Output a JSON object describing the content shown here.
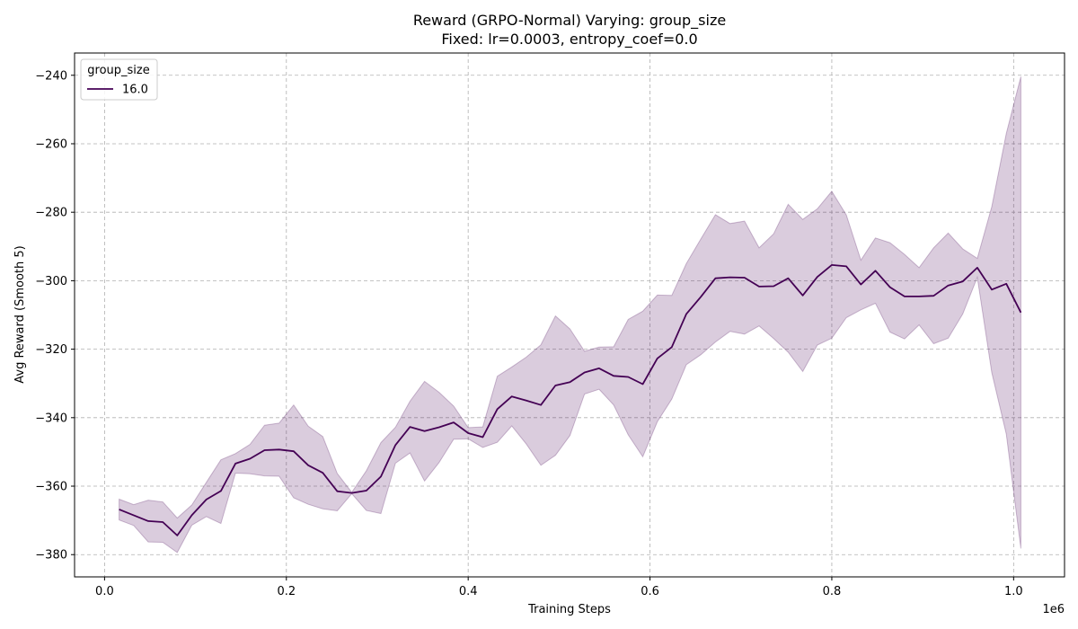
{
  "chart_data": {
    "type": "line",
    "title_line1": "Reward (GRPO-Normal) Varying: group_size",
    "title_line2": "Fixed: lr=0.0003, entropy_coef=0.0",
    "xlabel": "Training Steps",
    "ylabel": "Avg Reward (Smooth 5)",
    "x_multiplier_label": "1e6",
    "xlim": [
      -0.033,
      1.056
    ],
    "ylim": [
      -386.5,
      -233.5
    ],
    "x_ticks": [
      0.0,
      0.2,
      0.4,
      0.6,
      0.8,
      1.0
    ],
    "x_tick_labels": [
      "0.0",
      "0.2",
      "0.4",
      "0.6",
      "0.8",
      "1.0"
    ],
    "y_ticks": [
      -380,
      -360,
      -340,
      -320,
      -300,
      -280,
      -260,
      -240
    ],
    "y_tick_labels": [
      "−380",
      "−360",
      "−340",
      "−320",
      "−300",
      "−280",
      "−260",
      "−240"
    ],
    "grid": true,
    "legend": {
      "title": "group_size",
      "placement": "top-left"
    },
    "series": [
      {
        "name": "16.0",
        "color": "#440154",
        "band_color": "#440154",
        "x": [
          0.016,
          0.032,
          0.048,
          0.064,
          0.08,
          0.096,
          0.112,
          0.128,
          0.144,
          0.16,
          0.176,
          0.192,
          0.208,
          0.224,
          0.24,
          0.256,
          0.272,
          0.288,
          0.304,
          0.32,
          0.336,
          0.352,
          0.368,
          0.384,
          0.4,
          0.416,
          0.432,
          0.448,
          0.464,
          0.48,
          0.496,
          0.512,
          0.528,
          0.544,
          0.56,
          0.576,
          0.592,
          0.608,
          0.624,
          0.64,
          0.656,
          0.672,
          0.688,
          0.704,
          0.72,
          0.736,
          0.752,
          0.768,
          0.784,
          0.8,
          0.816,
          0.832,
          0.848,
          0.864,
          0.88,
          0.896,
          0.912,
          0.928,
          0.944,
          0.96,
          0.976,
          0.992,
          1.008
        ],
        "y": [
          -366.8,
          -368.5,
          -370.2,
          -370.5,
          -374.4,
          -368.5,
          -363.9,
          -361.4,
          -353.4,
          -352.0,
          -349.5,
          -349.3,
          -349.8,
          -353.9,
          -356.1,
          -361.5,
          -362.0,
          -361.3,
          -357.2,
          -348.0,
          -342.7,
          -343.9,
          -342.8,
          -341.4,
          -344.5,
          -345.7,
          -337.5,
          -333.8,
          -335.0,
          -336.3,
          -330.6,
          -329.6,
          -326.8,
          -325.6,
          -327.8,
          -328.1,
          -330.2,
          -322.7,
          -319.4,
          -309.7,
          -304.7,
          -299.3,
          -299.0,
          -299.1,
          -301.7,
          -301.6,
          -299.3,
          -304.3,
          -298.9,
          -295.4,
          -295.8,
          -301.1,
          -297.1,
          -301.9,
          -304.6,
          -304.6,
          -304.4,
          -301.4,
          -300.2,
          -296.2,
          -302.6,
          -300.9,
          -309.3
        ],
        "y_upper": [
          -363.8,
          -365.4,
          -364.1,
          -364.6,
          -369.3,
          -365.5,
          -358.9,
          -352.3,
          -350.5,
          -347.8,
          -342.2,
          -341.6,
          -336.3,
          -342.5,
          -345.5,
          -356.3,
          -361.8,
          -355.5,
          -347.3,
          -342.8,
          -335.2,
          -329.4,
          -332.6,
          -336.6,
          -342.9,
          -342.7,
          -327.9,
          -325.2,
          -322.3,
          -318.7,
          -310.3,
          -314.1,
          -320.6,
          -319.4,
          -319.3,
          -311.3,
          -308.9,
          -304.2,
          -304.3,
          -295.0,
          -287.8,
          -280.7,
          -283.3,
          -282.6,
          -290.4,
          -286.3,
          -277.7,
          -282.1,
          -279.0,
          -273.9,
          -280.8,
          -294.0,
          -287.5,
          -288.9,
          -292.3,
          -296.2,
          -290.4,
          -286.1,
          -290.7,
          -293.5,
          -278.4,
          -257.0,
          -240.4
        ],
        "y_lower": [
          -369.9,
          -371.5,
          -376.3,
          -376.4,
          -379.4,
          -371.4,
          -368.9,
          -370.9,
          -356.2,
          -356.4,
          -357.0,
          -357.1,
          -363.4,
          -365.3,
          -366.6,
          -367.2,
          -362.2,
          -367.1,
          -368.0,
          -353.3,
          -350.3,
          -358.5,
          -353.1,
          -346.3,
          -346.2,
          -348.7,
          -347.2,
          -342.4,
          -347.7,
          -353.9,
          -351.0,
          -345.2,
          -333.1,
          -331.7,
          -336.3,
          -345.0,
          -351.4,
          -341.2,
          -334.6,
          -324.5,
          -321.6,
          -317.9,
          -314.8,
          -315.6,
          -313.2,
          -316.9,
          -320.9,
          -326.5,
          -318.8,
          -316.8,
          -310.8,
          -308.5,
          -306.6,
          -315.0,
          -317.0,
          -312.9,
          -318.4,
          -316.8,
          -309.7,
          -299.0,
          -326.8,
          -344.8,
          -378.2
        ]
      }
    ]
  }
}
